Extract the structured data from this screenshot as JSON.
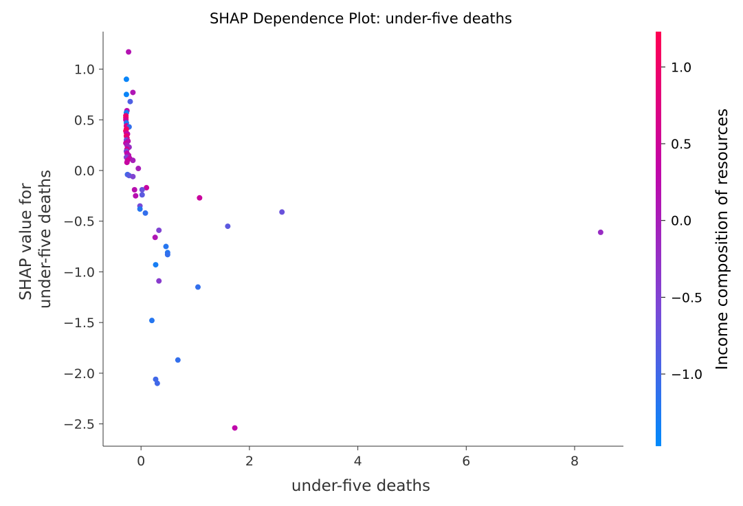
{
  "chart_data": {
    "type": "scatter",
    "title": "SHAP Dependence Plot: under-five deaths",
    "xlabel": "under-five deaths",
    "ylabel_lines": [
      "SHAP value for",
      "under-five deaths"
    ],
    "xlim": [
      -0.7,
      8.9
    ],
    "ylim": [
      -2.72,
      1.37
    ],
    "xticks": [
      0,
      2,
      4,
      6,
      8
    ],
    "yticks": [
      1.0,
      0.5,
      0.0,
      -0.5,
      -1.0,
      -1.5,
      -2.0,
      -2.5
    ],
    "colorbar": {
      "label": "Income composition of resources",
      "range": [
        -1.47,
        1.23
      ],
      "ticks": [
        1.0,
        0.5,
        0.0,
        -0.5,
        -1.0
      ],
      "colormap": [
        "#008afb",
        "#7b48d6",
        "#c105a8",
        "#ff0052"
      ]
    },
    "points": [
      {
        "x": -0.23,
        "y": 1.17,
        "c": 0.15
      },
      {
        "x": -0.27,
        "y": 0.9,
        "c": -1.4
      },
      {
        "x": -0.15,
        "y": 0.77,
        "c": 0.1
      },
      {
        "x": -0.27,
        "y": 0.75,
        "c": -1.4
      },
      {
        "x": -0.2,
        "y": 0.68,
        "c": -0.9
      },
      {
        "x": -0.26,
        "y": 0.59,
        "c": 0.2
      },
      {
        "x": -0.27,
        "y": 0.57,
        "c": -1.3
      },
      {
        "x": -0.28,
        "y": 0.54,
        "c": 0.9
      },
      {
        "x": -0.28,
        "y": 0.52,
        "c": 1.0
      },
      {
        "x": -0.28,
        "y": 0.5,
        "c": 0.5
      },
      {
        "x": -0.27,
        "y": 0.47,
        "c": -1.2
      },
      {
        "x": -0.27,
        "y": 0.44,
        "c": 0.7
      },
      {
        "x": -0.22,
        "y": 0.43,
        "c": -1.1
      },
      {
        "x": -0.27,
        "y": 0.41,
        "c": 0.95
      },
      {
        "x": -0.28,
        "y": 0.39,
        "c": 1.1
      },
      {
        "x": -0.27,
        "y": 0.37,
        "c": 0.6
      },
      {
        "x": -0.25,
        "y": 0.36,
        "c": 0.3
      },
      {
        "x": -0.27,
        "y": 0.34,
        "c": 1.0
      },
      {
        "x": -0.26,
        "y": 0.32,
        "c": 0.8
      },
      {
        "x": -0.27,
        "y": 0.3,
        "c": -0.7
      },
      {
        "x": -0.24,
        "y": 0.29,
        "c": 0.2
      },
      {
        "x": -0.28,
        "y": 0.27,
        "c": 0.4
      },
      {
        "x": -0.26,
        "y": 0.25,
        "c": 0.0
      },
      {
        "x": -0.22,
        "y": 0.23,
        "c": -0.2
      },
      {
        "x": -0.26,
        "y": 0.21,
        "c": 0.6
      },
      {
        "x": -0.27,
        "y": 0.19,
        "c": -0.6
      },
      {
        "x": -0.26,
        "y": 0.17,
        "c": 0.3
      },
      {
        "x": -0.23,
        "y": 0.15,
        "c": 0.2
      },
      {
        "x": -0.25,
        "y": 0.14,
        "c": 0.1
      },
      {
        "x": -0.27,
        "y": 0.13,
        "c": -0.5
      },
      {
        "x": -0.21,
        "y": 0.12,
        "c": 0.25
      },
      {
        "x": -0.25,
        "y": 0.1,
        "c": 0.5
      },
      {
        "x": -0.15,
        "y": 0.1,
        "c": 0.0
      },
      {
        "x": -0.26,
        "y": 0.08,
        "c": 0.4
      },
      {
        "x": -0.05,
        "y": 0.02,
        "c": 0.0
      },
      {
        "x": -0.25,
        "y": -0.04,
        "c": -1.0
      },
      {
        "x": -0.22,
        "y": -0.05,
        "c": -0.8
      },
      {
        "x": -0.15,
        "y": -0.06,
        "c": -0.5
      },
      {
        "x": -0.12,
        "y": -0.19,
        "c": 0.2
      },
      {
        "x": 0.1,
        "y": -0.17,
        "c": 0.4
      },
      {
        "x": 0.02,
        "y": -0.19,
        "c": -0.7
      },
      {
        "x": -0.1,
        "y": -0.25,
        "c": 0.2
      },
      {
        "x": 0.02,
        "y": -0.24,
        "c": -0.8
      },
      {
        "x": 1.08,
        "y": -0.27,
        "c": 0.45
      },
      {
        "x": -0.02,
        "y": -0.35,
        "c": -0.6
      },
      {
        "x": -0.02,
        "y": -0.38,
        "c": -1.2
      },
      {
        "x": 2.6,
        "y": -0.41,
        "c": -0.7
      },
      {
        "x": 0.08,
        "y": -0.42,
        "c": -1.1
      },
      {
        "x": 1.6,
        "y": -0.55,
        "c": -0.8
      },
      {
        "x": 8.48,
        "y": -0.61,
        "c": -0.2
      },
      {
        "x": 0.33,
        "y": -0.59,
        "c": -0.5
      },
      {
        "x": 0.26,
        "y": -0.66,
        "c": 0.1
      },
      {
        "x": 0.46,
        "y": -0.75,
        "c": -1.2
      },
      {
        "x": 0.49,
        "y": -0.81,
        "c": -1.2
      },
      {
        "x": 0.49,
        "y": -0.83,
        "c": -1.1
      },
      {
        "x": 0.27,
        "y": -0.93,
        "c": -1.3
      },
      {
        "x": 0.33,
        "y": -1.09,
        "c": -0.4
      },
      {
        "x": 1.05,
        "y": -1.15,
        "c": -1.1
      },
      {
        "x": 0.2,
        "y": -1.48,
        "c": -1.2
      },
      {
        "x": 0.68,
        "y": -1.87,
        "c": -1.1
      },
      {
        "x": 0.27,
        "y": -2.06,
        "c": -1.0
      },
      {
        "x": 0.3,
        "y": -2.1,
        "c": -1.0
      },
      {
        "x": 1.73,
        "y": -2.54,
        "c": 0.3
      }
    ]
  }
}
